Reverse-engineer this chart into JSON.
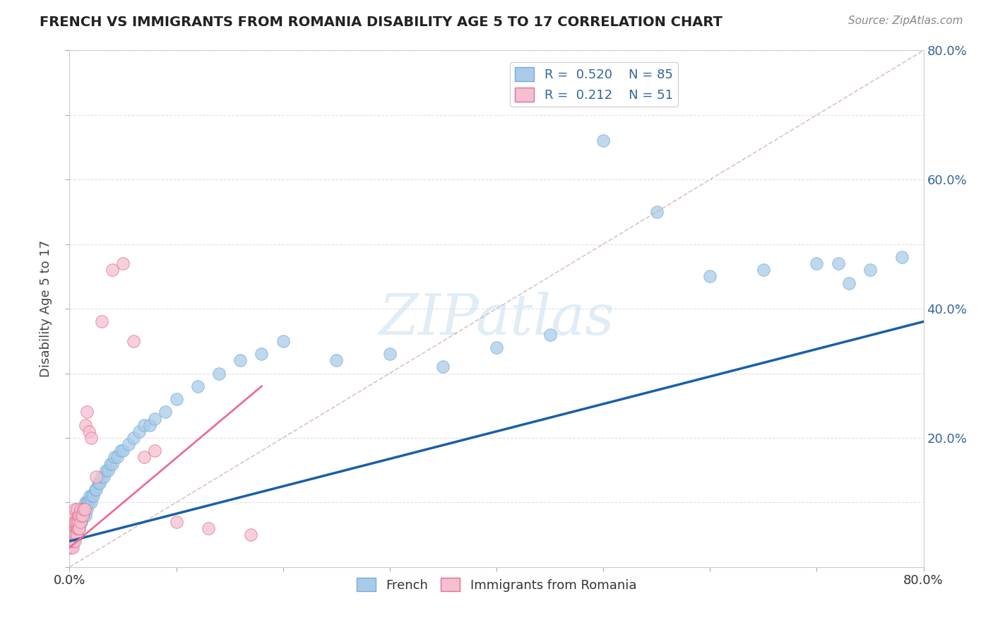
{
  "title": "FRENCH VS IMMIGRANTS FROM ROMANIA DISABILITY AGE 5 TO 17 CORRELATION CHART",
  "source": "Source: ZipAtlas.com",
  "ylabel": "Disability Age 5 to 17",
  "xlim": [
    0,
    0.8
  ],
  "ylim": [
    0,
    0.8
  ],
  "french_color": "#a8cce8",
  "french_edge_color": "#7aabda",
  "romania_color": "#f5bfcf",
  "romania_edge_color": "#e07090",
  "french_R": 0.52,
  "french_N": 85,
  "romania_R": 0.212,
  "romania_N": 51,
  "trendline_french_color": "#1a5fa8",
  "trendline_romania_color": "#e87090",
  "trendline_diag_color": "#ccaaaa",
  "watermark": "ZIPatlas",
  "background_color": "#ffffff",
  "grid_color": "#dddddd",
  "french_x": [
    0.001,
    0.002,
    0.002,
    0.003,
    0.003,
    0.003,
    0.004,
    0.004,
    0.004,
    0.005,
    0.005,
    0.005,
    0.006,
    0.006,
    0.006,
    0.007,
    0.007,
    0.007,
    0.008,
    0.008,
    0.008,
    0.009,
    0.009,
    0.009,
    0.01,
    0.01,
    0.01,
    0.011,
    0.011,
    0.012,
    0.012,
    0.013,
    0.013,
    0.014,
    0.015,
    0.015,
    0.016,
    0.016,
    0.017,
    0.018,
    0.019,
    0.02,
    0.021,
    0.022,
    0.024,
    0.025,
    0.027,
    0.028,
    0.03,
    0.032,
    0.034,
    0.036,
    0.038,
    0.04,
    0.042,
    0.045,
    0.048,
    0.05,
    0.055,
    0.06,
    0.065,
    0.07,
    0.075,
    0.08,
    0.09,
    0.1,
    0.12,
    0.14,
    0.16,
    0.18,
    0.2,
    0.25,
    0.3,
    0.35,
    0.4,
    0.45,
    0.5,
    0.55,
    0.6,
    0.65,
    0.7,
    0.72,
    0.73,
    0.75,
    0.78
  ],
  "french_y": [
    0.04,
    0.05,
    0.06,
    0.04,
    0.05,
    0.07,
    0.04,
    0.06,
    0.07,
    0.05,
    0.06,
    0.08,
    0.05,
    0.06,
    0.07,
    0.05,
    0.06,
    0.08,
    0.06,
    0.07,
    0.08,
    0.06,
    0.07,
    0.08,
    0.07,
    0.08,
    0.09,
    0.07,
    0.09,
    0.08,
    0.09,
    0.08,
    0.09,
    0.09,
    0.08,
    0.1,
    0.09,
    0.1,
    0.1,
    0.1,
    0.11,
    0.1,
    0.11,
    0.11,
    0.12,
    0.12,
    0.13,
    0.13,
    0.14,
    0.14,
    0.15,
    0.15,
    0.16,
    0.16,
    0.17,
    0.17,
    0.18,
    0.18,
    0.19,
    0.2,
    0.21,
    0.22,
    0.22,
    0.23,
    0.24,
    0.26,
    0.28,
    0.3,
    0.32,
    0.33,
    0.35,
    0.32,
    0.33,
    0.31,
    0.34,
    0.36,
    0.66,
    0.55,
    0.45,
    0.46,
    0.47,
    0.47,
    0.44,
    0.46,
    0.48
  ],
  "romania_x": [
    0.001,
    0.001,
    0.001,
    0.002,
    0.002,
    0.002,
    0.002,
    0.003,
    0.003,
    0.003,
    0.003,
    0.003,
    0.004,
    0.004,
    0.004,
    0.004,
    0.005,
    0.005,
    0.005,
    0.005,
    0.006,
    0.006,
    0.007,
    0.007,
    0.007,
    0.007,
    0.008,
    0.008,
    0.008,
    0.009,
    0.009,
    0.01,
    0.01,
    0.011,
    0.012,
    0.013,
    0.014,
    0.015,
    0.016,
    0.018,
    0.02,
    0.025,
    0.03,
    0.04,
    0.05,
    0.06,
    0.07,
    0.08,
    0.1,
    0.13,
    0.17
  ],
  "romania_y": [
    0.03,
    0.04,
    0.06,
    0.03,
    0.04,
    0.06,
    0.07,
    0.03,
    0.04,
    0.05,
    0.07,
    0.08,
    0.04,
    0.05,
    0.07,
    0.08,
    0.04,
    0.05,
    0.07,
    0.09,
    0.05,
    0.07,
    0.05,
    0.06,
    0.07,
    0.09,
    0.06,
    0.07,
    0.08,
    0.06,
    0.08,
    0.07,
    0.09,
    0.08,
    0.08,
    0.09,
    0.09,
    0.22,
    0.24,
    0.21,
    0.2,
    0.14,
    0.38,
    0.46,
    0.47,
    0.35,
    0.17,
    0.18,
    0.07,
    0.06,
    0.05
  ]
}
